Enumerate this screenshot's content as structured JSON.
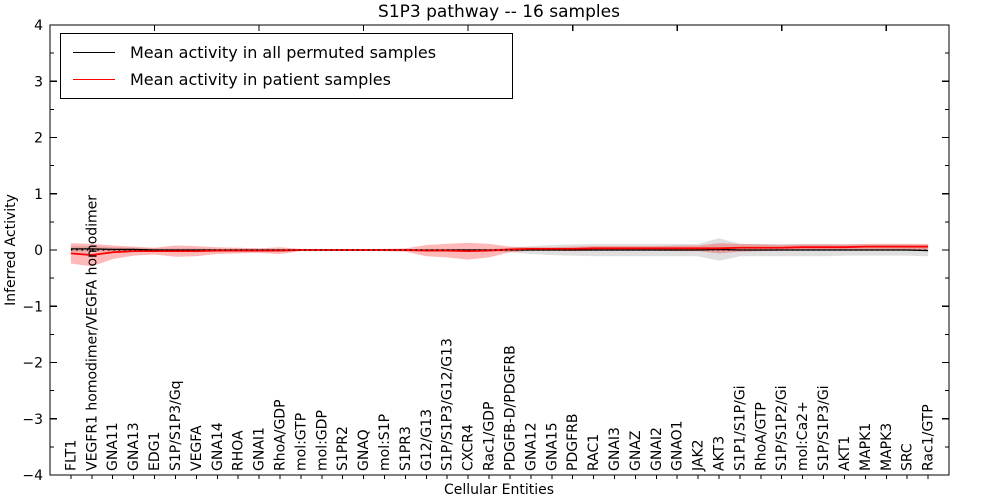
{
  "title": "S1P3 pathway -- 16 samples",
  "legend": {
    "items": [
      {
        "label": "Mean activity in all permuted samples",
        "color": "#000000"
      },
      {
        "label": "Mean activity in patient samples",
        "color": "#ff0000"
      }
    ]
  },
  "chart_data": {
    "type": "line",
    "title": "S1P3 pathway -- 16 samples",
    "xlabel": "Cellular Entities",
    "ylabel": "Inferred Activity",
    "ylim": [
      -4,
      4
    ],
    "grid": false,
    "legend_position": "upper left",
    "zero_line_style": "dotted",
    "yticks": [
      {
        "v": 4,
        "label": "4"
      },
      {
        "v": 3,
        "label": "3"
      },
      {
        "v": 2,
        "label": "2"
      },
      {
        "v": 1,
        "label": "1"
      },
      {
        "v": 0,
        "label": "0"
      },
      {
        "v": -1,
        "label": "−1"
      },
      {
        "v": -2,
        "label": "−2"
      },
      {
        "v": -3,
        "label": "−3"
      },
      {
        "v": -4,
        "label": "−4"
      }
    ],
    "ytick_minor_step": 0.5,
    "xtick_major_positions": [
      5,
      10,
      15,
      20,
      25,
      30,
      35,
      40
    ],
    "categories": [
      "FLT1",
      "VEGFR1 homodimer/VEGFA homodimer",
      "GNA11",
      "GNA13",
      "EDG1",
      "S1P/S1P3/Gq",
      "VEGFA",
      "GNA14",
      "RHOA",
      "GNAI1",
      "RhoA/GDP",
      "mol:GTP",
      "mol:GDP",
      "S1PR2",
      "GNAQ",
      "mol:S1P",
      "S1PR3",
      "G12/G13",
      "S1P/S1P3/G12/G13",
      "CXCR4",
      "Rac1/GDP",
      "PDGFB-D/PDGFRB",
      "GNA12",
      "GNA15",
      "PDGFRB",
      "RAC1",
      "GNAI3",
      "GNAZ",
      "GNAI2",
      "GNAO1",
      "JAK2",
      "AKT3",
      "S1P1/S1P/Gi",
      "RhoA/GTP",
      "S1P/S1P2/Gi",
      "mol:Ca2+",
      "S1P/S1P3/Gi",
      "AKT1",
      "MAPK1",
      "MAPK3",
      "SRC",
      "Rac1/GTP"
    ],
    "series": [
      {
        "name": "Mean activity in all permuted samples",
        "color": "#000000",
        "band_color": "#aaaaaa",
        "band_opacity": 0.38,
        "values": [
          0.02,
          0.02,
          0.01,
          0.01,
          0,
          0,
          0,
          0,
          0,
          0,
          0,
          0,
          0,
          0,
          0,
          0,
          0,
          0,
          0,
          0,
          0,
          0,
          0,
          0,
          0,
          0,
          0,
          0,
          0,
          0,
          0,
          0.01,
          0,
          0,
          0,
          0,
          0,
          0,
          0,
          0,
          0,
          -0.01
        ],
        "std": [
          0.05,
          0.05,
          0.04,
          0.03,
          0.03,
          0.03,
          0.03,
          0.02,
          0.02,
          0.02,
          0.02,
          0.01,
          0.01,
          0.01,
          0.01,
          0.01,
          0.01,
          0.02,
          0.02,
          0.02,
          0.02,
          0.04,
          0.07,
          0.09,
          0.1,
          0.11,
          0.11,
          0.11,
          0.11,
          0.11,
          0.11,
          0.2,
          0.11,
          0.11,
          0.11,
          0.11,
          0.11,
          0.1,
          0.1,
          0.1,
          0.1,
          0.1
        ]
      },
      {
        "name": "Mean activity in patient samples",
        "color": "#ff0000",
        "band_color": "#ff0000",
        "band_opacity": 0.28,
        "values": [
          -0.06,
          -0.09,
          -0.04,
          -0.02,
          -0.02,
          -0.02,
          -0.02,
          -0.01,
          -0.01,
          -0.01,
          -0.01,
          0,
          0,
          0,
          0,
          0,
          0,
          -0.01,
          -0.01,
          -0.02,
          -0.01,
          0.01,
          0.02,
          0.02,
          0.02,
          0.03,
          0.03,
          0.03,
          0.03,
          0.03,
          0.03,
          0.03,
          0.04,
          0.04,
          0.04,
          0.05,
          0.05,
          0.05,
          0.06,
          0.06,
          0.06,
          0.06
        ],
        "std": [
          0.18,
          0.2,
          0.12,
          0.08,
          0.06,
          0.1,
          0.09,
          0.06,
          0.05,
          0.04,
          0.06,
          0.02,
          0.02,
          0.015,
          0.015,
          0.02,
          0.03,
          0.1,
          0.12,
          0.15,
          0.12,
          0.05,
          0.03,
          0.03,
          0.04,
          0.04,
          0.04,
          0.04,
          0.04,
          0.05,
          0.05,
          0.09,
          0.07,
          0.06,
          0.05,
          0.05,
          0.05,
          0.05,
          0.05,
          0.05,
          0.05,
          0.05
        ]
      }
    ]
  }
}
